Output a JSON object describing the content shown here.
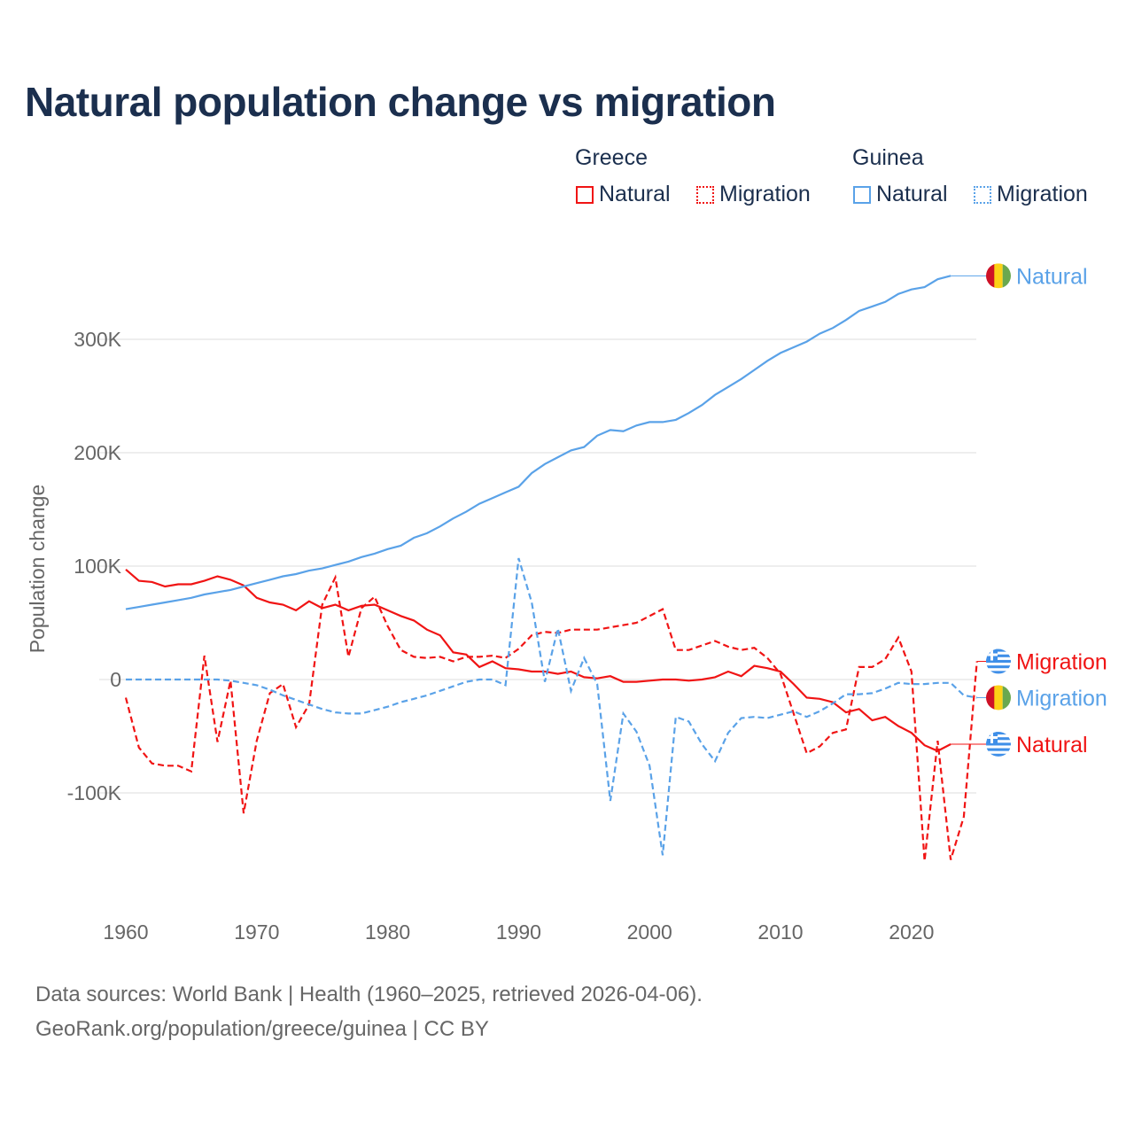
{
  "title": "Natural population change vs migration",
  "legend": {
    "groups": [
      {
        "name": "Greece",
        "items": [
          {
            "label": "Natural",
            "style": "solid"
          },
          {
            "label": "Migration",
            "style": "dotted"
          }
        ]
      },
      {
        "name": "Guinea",
        "items": [
          {
            "label": "Natural",
            "style": "solid"
          },
          {
            "label": "Migration",
            "style": "dotted"
          }
        ]
      }
    ]
  },
  "colors": {
    "greece": "#f01414",
    "guinea": "#5aa2e8"
  },
  "footer": {
    "line1": "Data sources: World Bank | Health (1960–2025, retrieved 2026-04-06).",
    "line2": "GeoRank.org/population/greece/guinea | CC BY"
  },
  "chart_data": {
    "type": "line",
    "title": "Natural population change vs migration",
    "xlabel": "",
    "ylabel": "Population change",
    "units": "thousands",
    "xlim": [
      1960,
      2025
    ],
    "ylim": [
      -170,
      370
    ],
    "xticks": [
      1960,
      1970,
      1980,
      1990,
      2000,
      2010,
      2020
    ],
    "xtick_labels": [
      "1960",
      "1970",
      "1980",
      "1990",
      "2000",
      "2010",
      "2020"
    ],
    "yticks": [
      -100,
      0,
      100,
      200,
      300
    ],
    "ytick_labels": [
      "-100K",
      "0",
      "100K",
      "200K",
      "300K"
    ],
    "grid": true,
    "legend_position": "top-right",
    "series": [
      {
        "name": "Greece Natural",
        "country": "Greece",
        "kind": "Natural",
        "dash": "solid",
        "end_label": "Natural",
        "start_year": 1960,
        "values": [
          97,
          87,
          86,
          82,
          84,
          84,
          87,
          91,
          88,
          83,
          72,
          68,
          66,
          61,
          69,
          63,
          66,
          61,
          65,
          66,
          61,
          56,
          52,
          44,
          39,
          24,
          22,
          11,
          16,
          10,
          9,
          7,
          7,
          5,
          7,
          2,
          1,
          3,
          -2,
          -2,
          -1,
          0,
          0,
          -1,
          0,
          2,
          7,
          3,
          12,
          10,
          7,
          -4,
          -16,
          -17,
          -20,
          -29,
          -26,
          -36,
          -33,
          -41,
          -47,
          -58,
          -63,
          -57
        ]
      },
      {
        "name": "Greece Migration",
        "country": "Greece",
        "kind": "Migration",
        "dash": "dashed",
        "end_label": "Migration",
        "start_year": 1960,
        "values": [
          -16,
          -60,
          -74,
          -76,
          -76,
          -81,
          21,
          -55,
          -1,
          -118,
          -54,
          -12,
          -4,
          -42,
          -22,
          66,
          90,
          20,
          63,
          73,
          47,
          26,
          20,
          19,
          20,
          16,
          20,
          20,
          21,
          19,
          27,
          39,
          42,
          41,
          44,
          44,
          44,
          46,
          48,
          50,
          56,
          62,
          26,
          26,
          30,
          34,
          29,
          26,
          28,
          19,
          5,
          -30,
          -65,
          -59,
          -47,
          -44,
          11,
          11,
          18,
          37,
          7,
          -160,
          -54,
          -159,
          -121,
          16
        ]
      },
      {
        "name": "Guinea Natural",
        "country": "Guinea",
        "kind": "Natural",
        "dash": "solid",
        "end_label": "Natural",
        "start_year": 1960,
        "values": [
          62,
          64,
          66,
          68,
          70,
          72,
          75,
          77,
          79,
          82,
          85,
          88,
          91,
          93,
          96,
          98,
          101,
          104,
          108,
          111,
          115,
          118,
          125,
          129,
          135,
          142,
          148,
          155,
          160,
          165,
          170,
          182,
          190,
          196,
          202,
          205,
          215,
          220,
          219,
          224,
          227,
          227,
          229,
          235,
          242,
          251,
          258,
          265,
          273,
          281,
          288,
          293,
          298,
          305,
          310,
          317,
          325,
          329,
          333,
          340,
          344,
          346,
          353,
          356
        ]
      },
      {
        "name": "Guinea Migration",
        "country": "Guinea",
        "kind": "Migration",
        "dash": "dashed",
        "end_label": "Migration",
        "start_year": 1960,
        "values": [
          0,
          0,
          0,
          0,
          0,
          0,
          0,
          0,
          -1,
          -3,
          -5,
          -9,
          -14,
          -18,
          -22,
          -26,
          -29,
          -30,
          -30,
          -27,
          -24,
          -20,
          -17,
          -14,
          -10,
          -6,
          -2,
          0,
          0,
          -5,
          107,
          68,
          -2,
          45,
          -10,
          19,
          -4,
          -107,
          -30,
          -46,
          -76,
          -155,
          -33,
          -37,
          -57,
          -72,
          -47,
          -34,
          -33,
          -34,
          -31,
          -28,
          -33,
          -28,
          -21,
          -13,
          -13,
          -12,
          -8,
          -3,
          -4,
          -4,
          -3,
          -3,
          -14,
          -16
        ]
      }
    ]
  }
}
